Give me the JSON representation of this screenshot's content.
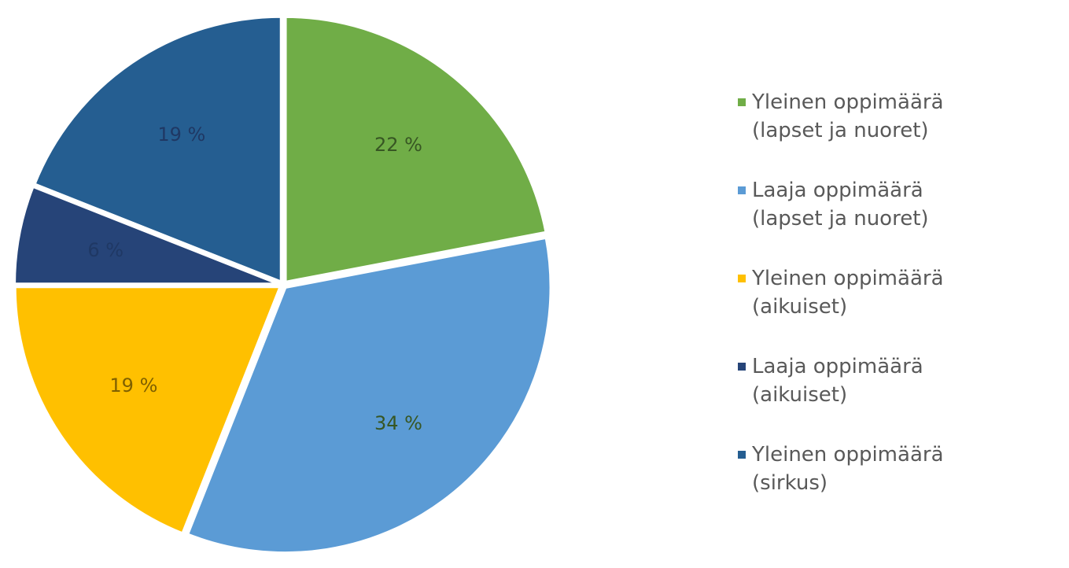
{
  "chart_data": {
    "type": "pie",
    "categories": [
      "Yleinen oppimäärä (lapset ja nuoret)",
      "Laaja oppimäärä (lapset ja nuoret)",
      "Yleinen oppimäärä (aikuiset)",
      "Laaja oppimäärä (aikuiset)",
      "Yleinen oppimäärä (sirkus)"
    ],
    "values": [
      22,
      34,
      19,
      6,
      19
    ],
    "value_labels": [
      "22 %",
      "34 %",
      "19 %",
      "6 %",
      "19 %"
    ],
    "colors": [
      "#70ad47",
      "#5b9bd5",
      "#ffc000",
      "#264478",
      "#255e91"
    ],
    "legend": "right"
  }
}
